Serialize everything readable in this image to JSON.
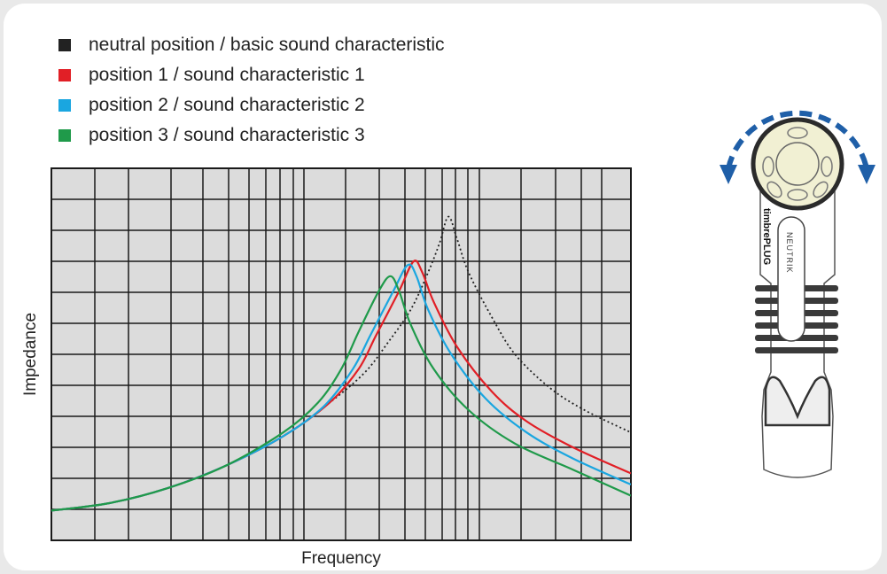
{
  "chart_data": {
    "type": "line",
    "xlabel": "Frequency",
    "ylabel": "Impedance",
    "x_scale": "log",
    "grid": true,
    "legend_position": "top-left",
    "plot_background": "#dcdcdc",
    "series": [
      {
        "name": "neutral position / basic sound characteristic",
        "color": "#222222",
        "style": "dotted",
        "points": [
          [
            0,
            0.08
          ],
          [
            0.1,
            0.1
          ],
          [
            0.2,
            0.14
          ],
          [
            0.3,
            0.2
          ],
          [
            0.4,
            0.28
          ],
          [
            0.48,
            0.37
          ],
          [
            0.54,
            0.45
          ],
          [
            0.58,
            0.53
          ],
          [
            0.62,
            0.62
          ],
          [
            0.65,
            0.72
          ],
          [
            0.67,
            0.8
          ],
          [
            0.685,
            0.87
          ],
          [
            0.7,
            0.81
          ],
          [
            0.72,
            0.72
          ],
          [
            0.76,
            0.6
          ],
          [
            0.8,
            0.5
          ],
          [
            0.86,
            0.41
          ],
          [
            0.92,
            0.35
          ],
          [
            1.0,
            0.29
          ]
        ]
      },
      {
        "name": "position 1 / sound characteristic 1",
        "color": "#e11f26",
        "style": "solid",
        "points": [
          [
            0,
            0.08
          ],
          [
            0.1,
            0.1
          ],
          [
            0.2,
            0.14
          ],
          [
            0.3,
            0.2
          ],
          [
            0.4,
            0.28
          ],
          [
            0.48,
            0.37
          ],
          [
            0.53,
            0.46
          ],
          [
            0.56,
            0.55
          ],
          [
            0.6,
            0.67
          ],
          [
            0.625,
            0.75
          ],
          [
            0.64,
            0.72
          ],
          [
            0.66,
            0.64
          ],
          [
            0.7,
            0.52
          ],
          [
            0.76,
            0.4
          ],
          [
            0.82,
            0.32
          ],
          [
            0.9,
            0.25
          ],
          [
            1.0,
            0.18
          ]
        ]
      },
      {
        "name": "position 2 / sound characteristic 2",
        "color": "#1aa6e0",
        "style": "solid",
        "points": [
          [
            0,
            0.08
          ],
          [
            0.1,
            0.1
          ],
          [
            0.2,
            0.14
          ],
          [
            0.3,
            0.2
          ],
          [
            0.4,
            0.28
          ],
          [
            0.47,
            0.36
          ],
          [
            0.52,
            0.46
          ],
          [
            0.55,
            0.55
          ],
          [
            0.59,
            0.67
          ],
          [
            0.615,
            0.74
          ],
          [
            0.63,
            0.71
          ],
          [
            0.65,
            0.62
          ],
          [
            0.69,
            0.5
          ],
          [
            0.75,
            0.38
          ],
          [
            0.82,
            0.29
          ],
          [
            0.9,
            0.22
          ],
          [
            1.0,
            0.15
          ]
        ]
      },
      {
        "name": "position 3 / sound characteristic 3",
        "color": "#1f9a4a",
        "style": "solid",
        "points": [
          [
            0,
            0.08
          ],
          [
            0.1,
            0.1
          ],
          [
            0.2,
            0.14
          ],
          [
            0.3,
            0.2
          ],
          [
            0.4,
            0.29
          ],
          [
            0.46,
            0.37
          ],
          [
            0.5,
            0.46
          ],
          [
            0.53,
            0.56
          ],
          [
            0.565,
            0.67
          ],
          [
            0.585,
            0.71
          ],
          [
            0.6,
            0.67
          ],
          [
            0.62,
            0.58
          ],
          [
            0.66,
            0.46
          ],
          [
            0.72,
            0.35
          ],
          [
            0.8,
            0.26
          ],
          [
            0.9,
            0.19
          ],
          [
            1.0,
            0.12
          ]
        ]
      }
    ]
  },
  "plug": {
    "brand_text": "timbrePLUG",
    "logo_text": "NEUTRIK",
    "rotate_arrows_color": "#1f5fa8",
    "knob_color": "#f1f0d3"
  }
}
